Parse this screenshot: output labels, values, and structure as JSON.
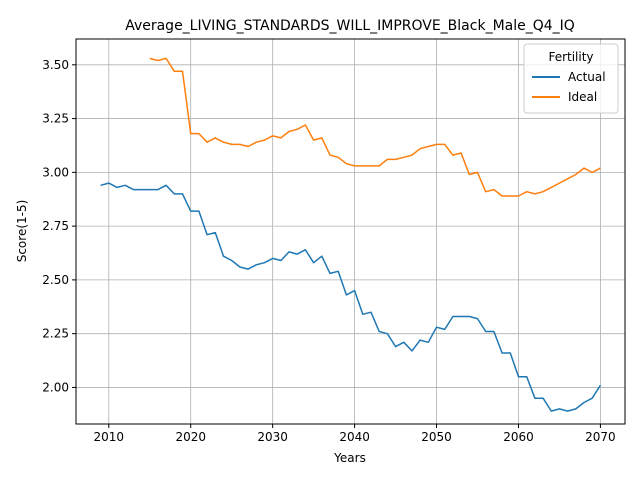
{
  "chart_data": {
    "type": "line",
    "title": "Average_LIVING_STANDARDS_WILL_IMPROVE_Black_Male_Q4_IQ",
    "xlabel": "Years",
    "ylabel": "Score(1-5)",
    "xlim": [
      2006,
      2073
    ],
    "ylim": [
      1.83,
      3.62
    ],
    "xticks": [
      2010,
      2020,
      2030,
      2040,
      2050,
      2060,
      2070
    ],
    "yticks": [
      2.0,
      2.25,
      2.5,
      2.75,
      3.0,
      3.25,
      3.5
    ],
    "ytick_labels": [
      "2.00",
      "2.25",
      "2.50",
      "2.75",
      "3.00",
      "3.25",
      "3.50"
    ],
    "grid": true,
    "legend": {
      "title": "Fertility",
      "position": "top-right"
    },
    "series": [
      {
        "name": "Actual",
        "color": "#1f77b4",
        "x": [
          2009,
          2010,
          2011,
          2012,
          2013,
          2014,
          2015,
          2016,
          2017,
          2018,
          2019,
          2020,
          2021,
          2022,
          2023,
          2024,
          2025,
          2026,
          2027,
          2028,
          2029,
          2030,
          2031,
          2032,
          2033,
          2034,
          2035,
          2036,
          2037,
          2038,
          2039,
          2040,
          2041,
          2042,
          2043,
          2044,
          2045,
          2046,
          2047,
          2048,
          2049,
          2050,
          2051,
          2052,
          2053,
          2054,
          2055,
          2056,
          2057,
          2058,
          2059,
          2060,
          2061,
          2062,
          2063,
          2064,
          2065,
          2066,
          2067,
          2068,
          2069,
          2070
        ],
        "y": [
          2.94,
          2.95,
          2.93,
          2.94,
          2.92,
          2.92,
          2.92,
          2.92,
          2.94,
          2.9,
          2.9,
          2.82,
          2.82,
          2.71,
          2.72,
          2.61,
          2.59,
          2.56,
          2.55,
          2.57,
          2.58,
          2.6,
          2.59,
          2.63,
          2.62,
          2.64,
          2.58,
          2.61,
          2.53,
          2.54,
          2.43,
          2.45,
          2.34,
          2.35,
          2.26,
          2.25,
          2.19,
          2.21,
          2.17,
          2.22,
          2.21,
          2.28,
          2.27,
          2.33,
          2.33,
          2.33,
          2.32,
          2.26,
          2.26,
          2.16,
          2.16,
          2.05,
          2.05,
          1.95,
          1.95,
          1.89,
          1.9,
          1.89,
          1.9,
          1.93,
          1.95,
          2.01
        ]
      },
      {
        "name": "Ideal",
        "color": "#ff7f0e",
        "x": [
          2015,
          2016,
          2017,
          2018,
          2019,
          2020,
          2021,
          2022,
          2023,
          2024,
          2025,
          2026,
          2027,
          2028,
          2029,
          2030,
          2031,
          2032,
          2033,
          2034,
          2035,
          2036,
          2037,
          2038,
          2039,
          2040,
          2041,
          2042,
          2043,
          2044,
          2045,
          2046,
          2047,
          2048,
          2049,
          2050,
          2051,
          2052,
          2053,
          2054,
          2055,
          2056,
          2057,
          2058,
          2059,
          2060,
          2061,
          2062,
          2063,
          2064,
          2065,
          2066,
          2067,
          2068,
          2069,
          2070
        ],
        "y": [
          3.53,
          3.52,
          3.53,
          3.47,
          3.47,
          3.18,
          3.18,
          3.14,
          3.16,
          3.14,
          3.13,
          3.13,
          3.12,
          3.14,
          3.15,
          3.17,
          3.16,
          3.19,
          3.2,
          3.22,
          3.15,
          3.16,
          3.08,
          3.07,
          3.04,
          3.03,
          3.03,
          3.03,
          3.03,
          3.06,
          3.06,
          3.07,
          3.08,
          3.11,
          3.12,
          3.13,
          3.13,
          3.08,
          3.09,
          2.99,
          3.0,
          2.91,
          2.92,
          2.89,
          2.89,
          2.89,
          2.91,
          2.9,
          2.91,
          2.93,
          2.95,
          2.97,
          2.99,
          3.02,
          3.0,
          3.02
        ]
      }
    ]
  }
}
